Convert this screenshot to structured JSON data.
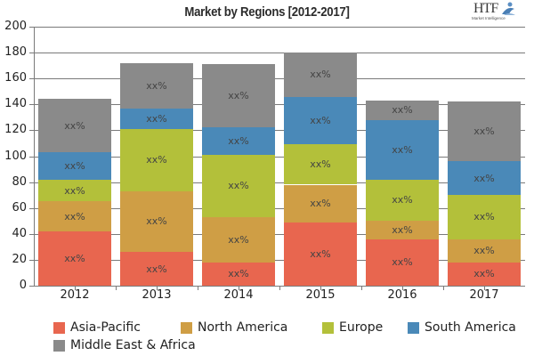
{
  "title": "Market by Regions [2012-2017]",
  "logo": {
    "brand": "HTF",
    "tagline": "Market Intelligence"
  },
  "chart_data": {
    "type": "bar",
    "stacked": true,
    "title": "Market by Regions [2012-2017]",
    "xlabel": "",
    "ylabel": "",
    "ylim": [
      0,
      200
    ],
    "yticks": [
      0,
      20,
      40,
      60,
      80,
      100,
      120,
      140,
      160,
      180,
      200
    ],
    "grid": true,
    "legend_position": "bottom",
    "categories": [
      "2012",
      "2013",
      "2014",
      "2015",
      "2016",
      "2017"
    ],
    "series": [
      {
        "name": "Asia-Pacific",
        "color": "#E8664F",
        "values": [
          42,
          26,
          18,
          49,
          36,
          18
        ]
      },
      {
        "name": "North America",
        "color": "#CF9E45",
        "values": [
          23,
          47,
          35,
          29,
          14,
          18
        ]
      },
      {
        "name": "Europe",
        "color": "#B3C03A",
        "values": [
          17,
          48,
          48,
          31,
          32,
          34
        ]
      },
      {
        "name": "South America",
        "color": "#4A89B8",
        "values": [
          21,
          16,
          21,
          37,
          46,
          26
        ]
      },
      {
        "name": "Middle East & Africa",
        "color": "#8A8A8A",
        "values": [
          41,
          35,
          49,
          34,
          15,
          46
        ]
      }
    ],
    "segment_label": "xx%",
    "totals": [
      144,
      172,
      171,
      180,
      143,
      142
    ]
  }
}
